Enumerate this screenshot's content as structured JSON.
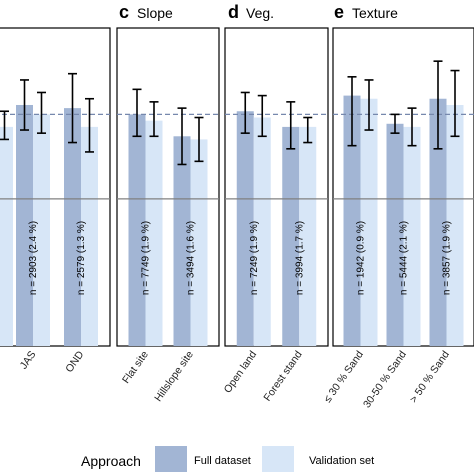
{
  "chart_data": {
    "type": "bar",
    "y_range": [
      0,
      100
    ],
    "ref_lines": {
      "dashed": 74,
      "solid": 47
    },
    "colors": {
      "full": "#a2b5d4",
      "validation": "#d7e6f7",
      "ref_dashed": "#7688ad",
      "ref_solid": "#808080"
    },
    "panels": [
      {
        "letter": "",
        "title": "",
        "categories": [
          {
            "label": "",
            "n_label": "",
            "full": 72,
            "full_err": [
              67,
              77
            ],
            "val": 70,
            "val_err": [
              66,
              75
            ]
          },
          {
            "label": "JAS",
            "n_label": "n = 2903   (2.4 %)",
            "full": 77,
            "full_err": [
              69,
              85
            ],
            "val": 74,
            "val_err": [
              68,
              81
            ]
          },
          {
            "label": "OND",
            "n_label": "n = 2579   (1.3 %)",
            "full": 76,
            "full_err": [
              65,
              87
            ],
            "val": 70,
            "val_err": [
              62,
              79
            ]
          }
        ]
      },
      {
        "letter": "c",
        "title": "Slope",
        "categories": [
          {
            "label": "Flat site",
            "n_label": "n = 7749   (1.9 %)",
            "full": 74,
            "full_err": [
              67,
              82
            ],
            "val": 72,
            "val_err": [
              67,
              78
            ]
          },
          {
            "label": "Hillslope site",
            "n_label": "n = 3494   (1.6 %)",
            "full": 67,
            "full_err": [
              58,
              76
            ],
            "val": 66,
            "val_err": [
              59,
              73
            ]
          }
        ]
      },
      {
        "letter": "d",
        "title": "Veg.",
        "categories": [
          {
            "label": "Open land",
            "n_label": "n = 7249   (1.9 %)",
            "full": 75,
            "full_err": [
              68,
              81
            ],
            "val": 73,
            "val_err": [
              67,
              80
            ]
          },
          {
            "label": "Forest stand",
            "n_label": "n = 3994   (1.7 %)",
            "full": 70,
            "full_err": [
              63,
              78
            ],
            "val": 70,
            "val_err": [
              65,
              73
            ]
          }
        ]
      },
      {
        "letter": "e",
        "title": "Texture",
        "categories": [
          {
            "label": "≤ 30 % Sand",
            "n_label": "n = 1942   (0.9 %)",
            "full": 80,
            "full_err": [
              64,
              86
            ],
            "val": 79,
            "val_err": [
              69,
              85
            ]
          },
          {
            "label": "30-50 % Sand",
            "n_label": "n = 5444   (2.1 %)",
            "full": 71,
            "full_err": [
              68,
              74
            ],
            "val": 70,
            "val_err": [
              64,
              76
            ]
          },
          {
            "label": "> 50 % Sand",
            "n_label": "n = 3857   (1.9 %)",
            "full": 79,
            "full_err": [
              63,
              91
            ],
            "val": 77,
            "val_err": [
              67,
              88
            ]
          }
        ]
      }
    ],
    "legend": {
      "title": "Approach",
      "entries": [
        {
          "name": "Full dataset",
          "color_key": "full"
        },
        {
          "name": "Validation set",
          "color_key": "validation"
        }
      ],
      "placement": "bottom"
    }
  }
}
